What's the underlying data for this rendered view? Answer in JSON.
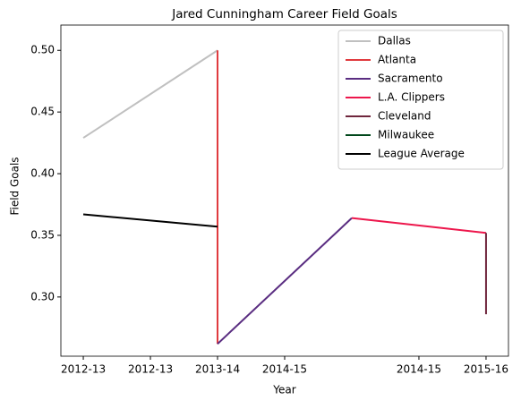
{
  "chart_data": {
    "type": "line",
    "title": "Jared Cunningham Career Field Goals",
    "x_label": "Year",
    "y_label": "Field Goals",
    "series": [
      {
        "name": "Dallas",
        "color": "#c0c0c0",
        "x": [
          0,
          1
        ],
        "values": [
          0.429,
          0.5
        ]
      },
      {
        "name": "Atlanta",
        "color": "#e03a3e",
        "x": [
          1,
          1
        ],
        "values": [
          0.5,
          0.262
        ]
      },
      {
        "name": "Sacramento",
        "color": "#5a2d81",
        "x": [
          1,
          2
        ],
        "values": [
          0.262,
          0.364
        ]
      },
      {
        "name": "L.A. Clippers",
        "color": "#ed174c",
        "x": [
          2,
          3
        ],
        "values": [
          0.364,
          0.352
        ]
      },
      {
        "name": "Cleveland",
        "color": "#6f263d",
        "x": [
          3,
          3
        ],
        "values": [
          0.352,
          0.286
        ]
      },
      {
        "name": "Milwaukee",
        "color": "#00471b",
        "x": [],
        "values": []
      },
      {
        "name": "League Average",
        "color": "#000000",
        "x": [
          0,
          1
        ],
        "values": [
          0.367,
          0.357
        ]
      }
    ],
    "xlim": [
      -0.167,
      3.167
    ],
    "xticks": [
      {
        "value": 0,
        "label": "2012-13"
      },
      {
        "value": 0.5,
        "label": "2012-13"
      },
      {
        "value": 1,
        "label": "2013-14"
      },
      {
        "value": 1.5,
        "label": "2014-15"
      },
      {
        "value": 2.5,
        "label": "2014-15"
      },
      {
        "value": 3,
        "label": "2015-16"
      }
    ],
    "ylim": [
      0.252,
      0.5205
    ],
    "yticks": [
      {
        "value": 0.3,
        "label": "0.30"
      },
      {
        "value": 0.35,
        "label": "0.35"
      },
      {
        "value": 0.4,
        "label": "0.40"
      },
      {
        "value": 0.45,
        "label": "0.45"
      },
      {
        "value": 0.5,
        "label": "0.50"
      }
    ],
    "legend": "upper right",
    "grid": false
  }
}
